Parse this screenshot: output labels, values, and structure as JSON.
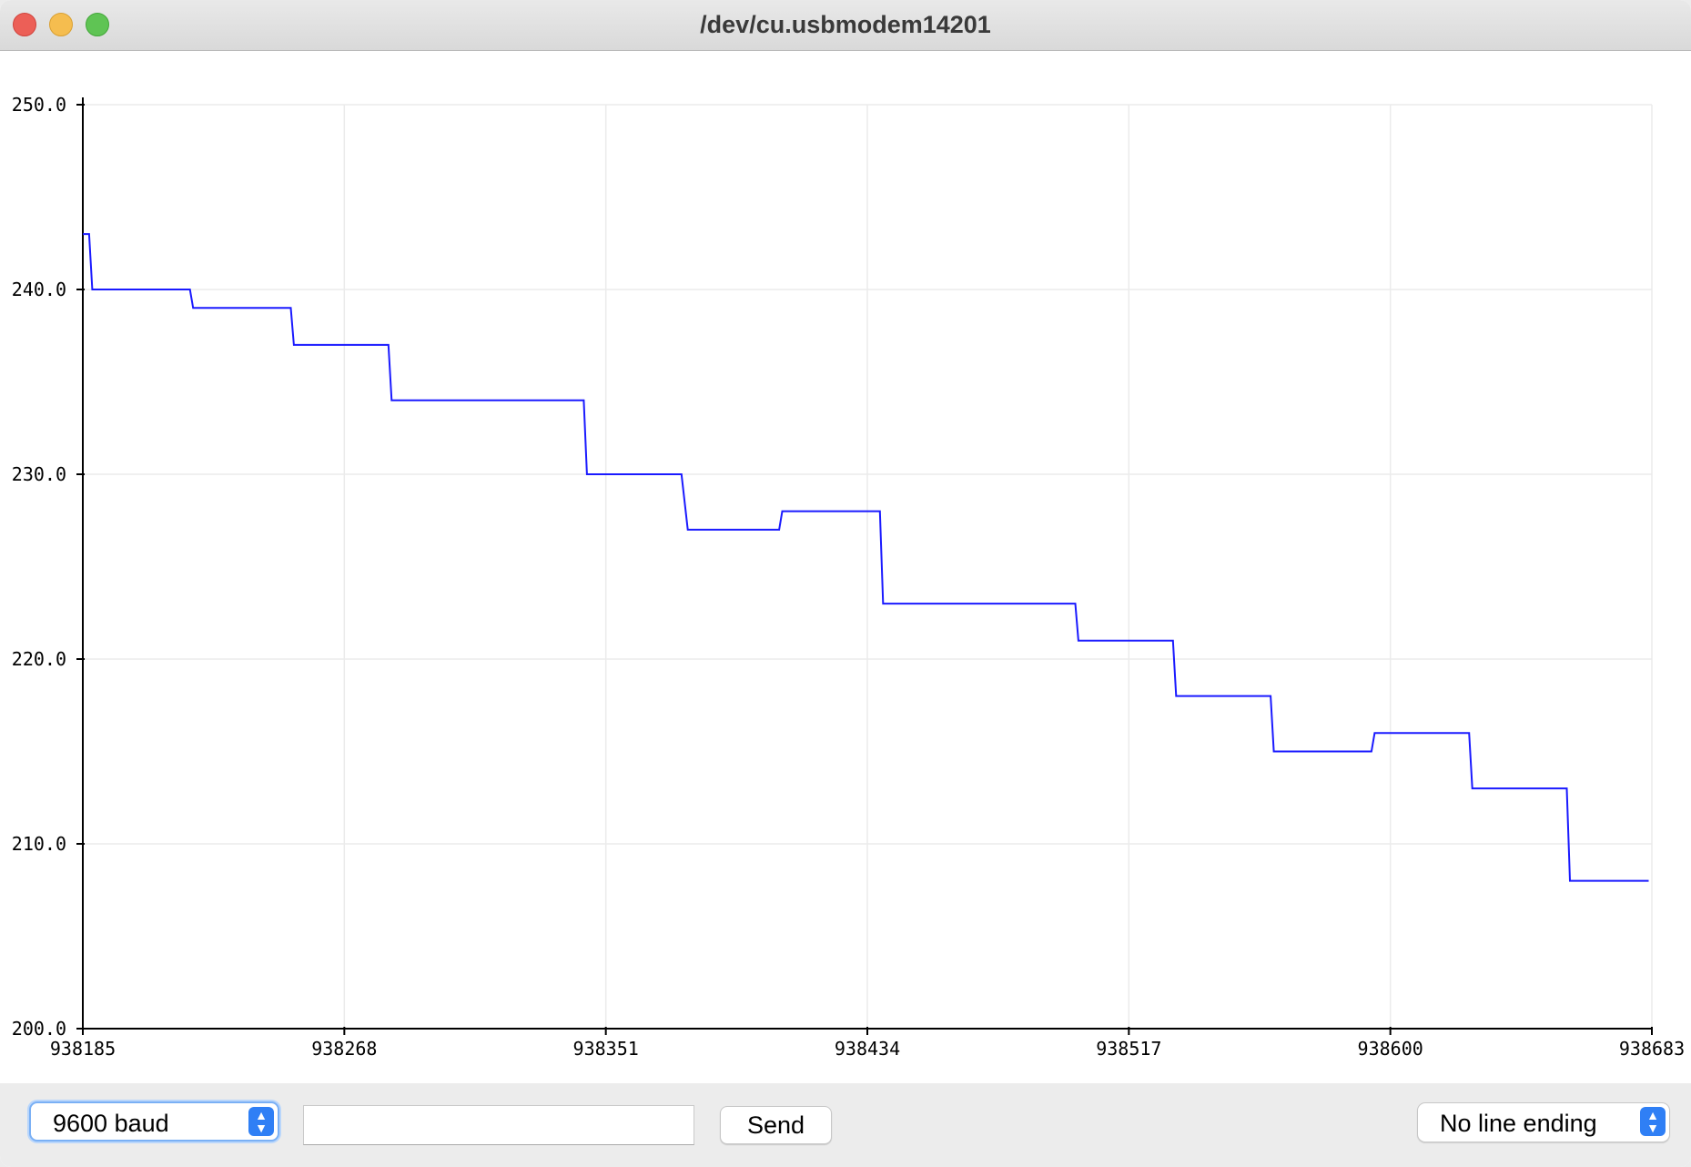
{
  "window": {
    "title": "/dev/cu.usbmodem14201"
  },
  "toolbar": {
    "baud_rate": "9600 baud",
    "send_input_value": "",
    "send_label": "Send",
    "line_ending": "No line ending"
  },
  "colors": {
    "series": "#1a1aff",
    "grid": "#ebebeb",
    "axis": "#000000"
  },
  "chart_data": {
    "type": "line",
    "title": "",
    "xlabel": "",
    "ylabel": "",
    "xlim": [
      938185,
      938683
    ],
    "ylim": [
      200.0,
      250.0
    ],
    "x_ticks": [
      "938185",
      "938268",
      "938351",
      "938434",
      "938517",
      "938600",
      "938683"
    ],
    "y_ticks": [
      "200.0",
      "210.0",
      "220.0",
      "230.0",
      "240.0",
      "250.0"
    ],
    "grid": true,
    "step": true,
    "series": [
      {
        "points": [
          [
            938185,
            243
          ],
          [
            938187,
            243
          ],
          [
            938188,
            240
          ],
          [
            938219,
            240
          ],
          [
            938220,
            239
          ],
          [
            938251,
            239
          ],
          [
            938252,
            237
          ],
          [
            938282,
            237
          ],
          [
            938283,
            234
          ],
          [
            938344,
            234
          ],
          [
            938345,
            230
          ],
          [
            938375,
            230
          ],
          [
            938377,
            227
          ],
          [
            938406,
            227
          ],
          [
            938407,
            228
          ],
          [
            938438,
            228
          ],
          [
            938439,
            223
          ],
          [
            938500,
            223
          ],
          [
            938501,
            221
          ],
          [
            938531,
            221
          ],
          [
            938532,
            218
          ],
          [
            938562,
            218
          ],
          [
            938563,
            215
          ],
          [
            938594,
            215
          ],
          [
            938595,
            216
          ],
          [
            938625,
            216
          ],
          [
            938626,
            213
          ],
          [
            938656,
            213
          ],
          [
            938657,
            208
          ],
          [
            938682,
            208
          ]
        ]
      }
    ]
  }
}
